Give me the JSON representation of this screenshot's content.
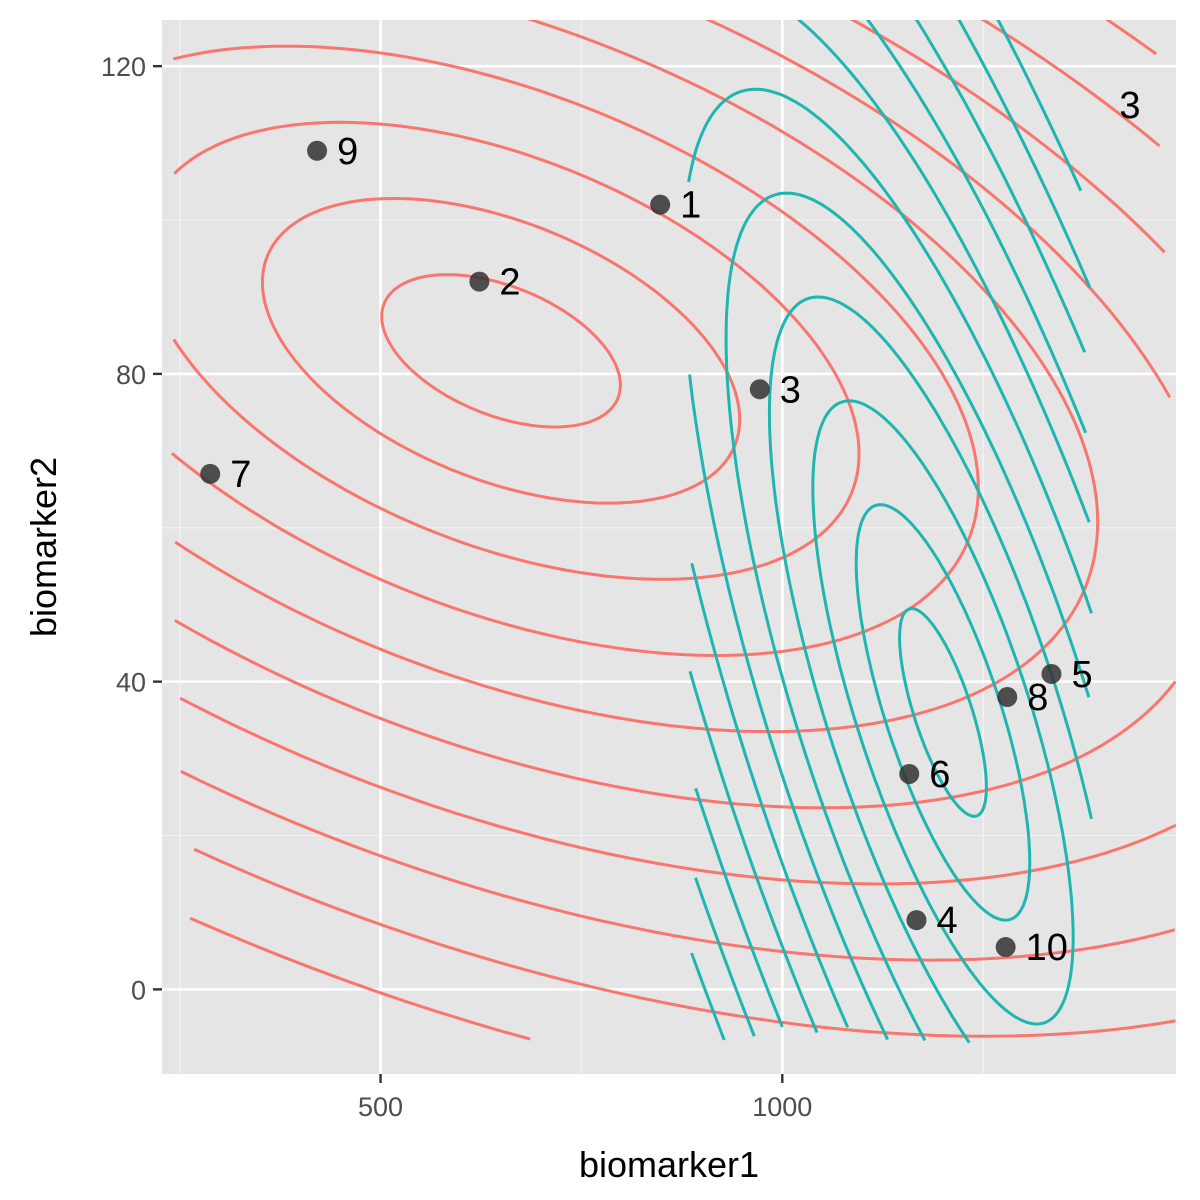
{
  "chart_data": {
    "type": "scatter",
    "title": "",
    "xlabel": "biomarker1",
    "ylabel": "biomarker2",
    "xlim": [
      228,
      1490
    ],
    "ylim": [
      -11,
      126
    ],
    "x_ticks": [
      {
        "value": 500,
        "label": "500"
      },
      {
        "value": 1000,
        "label": "1000"
      }
    ],
    "x_minor_ticks": [
      250,
      750,
      1250
    ],
    "y_ticks": [
      {
        "value": 0,
        "label": "0"
      },
      {
        "value": 40,
        "label": "40"
      },
      {
        "value": 80,
        "label": "80"
      },
      {
        "value": 120,
        "label": "120"
      }
    ],
    "y_minor_ticks": [
      20,
      60,
      100
    ],
    "grid": true,
    "background": "#e5e5e5",
    "points": [
      {
        "label": "1",
        "x": 848,
        "y": 102
      },
      {
        "label": "2",
        "x": 623,
        "y": 92
      },
      {
        "label": "3",
        "x": 972,
        "y": 78
      },
      {
        "label": "4",
        "x": 1167,
        "y": 9
      },
      {
        "label": "5",
        "x": 1335,
        "y": 41
      },
      {
        "label": "6",
        "x": 1158,
        "y": 28
      },
      {
        "label": "7",
        "x": 288,
        "y": 67
      },
      {
        "label": "8",
        "x": 1280,
        "y": 38
      },
      {
        "label": "9",
        "x": 421,
        "y": 109
      },
      {
        "label": "10",
        "x": 1278,
        "y": 5.5
      }
    ],
    "point_color": "#333333",
    "corner_label": "3",
    "density_groups": [
      {
        "color": "#f8766d",
        "center": [
          650,
          83
        ],
        "sd": [
          330,
          22
        ],
        "rho": -0.45,
        "levels": 10,
        "x_range": [
          240,
          1490
        ]
      },
      {
        "color": "#1fb5b0",
        "center": [
          1200,
          36
        ],
        "sd": [
          120,
          30
        ],
        "rho": -0.72,
        "levels": 11,
        "x_range": [
          883,
          1385
        ]
      }
    ]
  }
}
